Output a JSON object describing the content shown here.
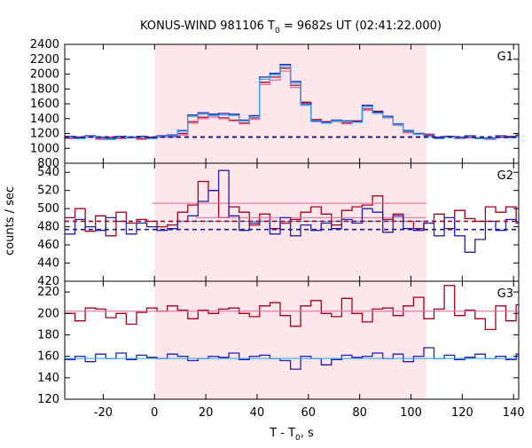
{
  "chart_data": {
    "type": "line",
    "title": "KONUS-WIND 981106 T",
    "title_subscript": "0",
    "title_suffix": " = 9682s UT (02:41:22.000)",
    "xlabel": "T - T",
    "xlabel_subscript": "0",
    "xlabel_suffix": ", s",
    "ylabel": "counts / sec",
    "xlim": [
      -35,
      142
    ],
    "xticks": [
      -20,
      0,
      20,
      40,
      60,
      80,
      100,
      120,
      140
    ],
    "xtick_labels": [
      "-20",
      "0",
      "20",
      "40",
      "60",
      "80",
      "100",
      "120",
      "140"
    ],
    "shaded_interval": [
      0,
      106
    ],
    "shade_color": "#fde7ea",
    "colors": {
      "dark_red": "#a8001c",
      "pink": "#e070a0",
      "dark_blue": "#2020b0",
      "light_blue": "#3aa8f0",
      "bg_dark_red": "#a8001c",
      "bg_dark_blue": "#1a1a9a"
    },
    "panels": [
      {
        "label": "G1",
        "ylim": [
          800,
          2400
        ],
        "yticks": [
          800,
          1000,
          1200,
          1400,
          1600,
          1800,
          2000,
          2200,
          2400
        ],
        "ytick_labels": [
          "800",
          "1000",
          "1200",
          "1400",
          "1600",
          "1800",
          "2000",
          "2200",
          "2400"
        ],
        "x_step": -35,
        "bin_width": 4,
        "series": [
          {
            "color_key": "dark_red",
            "style": "step",
            "values": [
              1140,
              1150,
              1160,
              1130,
              1150,
              1140,
              1150,
              1130,
              1150,
              1160,
              1160,
              1200,
              1360,
              1420,
              1440,
              1410,
              1380,
              1340,
              1410,
              1890,
              1960,
              2080,
              1850,
              1620,
              1390,
              1360,
              1370,
              1340,
              1370,
              1530,
              1500,
              1420,
              1320,
              1220,
              1200,
              1190,
              1150,
              1160,
              1140,
              1150,
              1140,
              1130,
              1150,
              1160,
              1180
            ]
          },
          {
            "color_key": "pink",
            "style": "step",
            "values": [
              1130,
              1140,
              1150,
              1120,
              1140,
              1130,
              1140,
              1120,
              1140,
              1150,
              1150,
              1180,
              1340,
              1400,
              1420,
              1400,
              1370,
              1330,
              1390,
              1860,
              1920,
              2040,
              1820,
              1600,
              1380,
              1350,
              1360,
              1330,
              1360,
              1510,
              1480,
              1410,
              1310,
              1210,
              1190,
              1180,
              1140,
              1150,
              1130,
              1140,
              1130,
              1120,
              1140,
              1150,
              1170
            ]
          },
          {
            "color_key": "dark_blue",
            "style": "step",
            "values": [
              1160,
              1140,
              1170,
              1150,
              1130,
              1160,
              1150,
              1160,
              1140,
              1170,
              1180,
              1240,
              1450,
              1480,
              1460,
              1470,
              1460,
              1380,
              1440,
              1960,
              2010,
              2130,
              1900,
              1600,
              1370,
              1350,
              1380,
              1370,
              1360,
              1580,
              1490,
              1430,
              1330,
              1240,
              1200,
              1170,
              1140,
              1160,
              1150,
              1170,
              1140,
              1140,
              1170,
              1150,
              1170
            ]
          },
          {
            "color_key": "light_blue",
            "style": "step",
            "values": [
              1150,
              1130,
              1160,
              1140,
              1120,
              1150,
              1140,
              1150,
              1130,
              1160,
              1170,
              1230,
              1430,
              1460,
              1440,
              1450,
              1440,
              1370,
              1420,
              1930,
              1990,
              2110,
              1880,
              1580,
              1360,
              1340,
              1370,
              1360,
              1350,
              1560,
              1470,
              1420,
              1320,
              1230,
              1190,
              1160,
              1130,
              1150,
              1140,
              1160,
              1130,
              1130,
              1160,
              1140,
              1160
            ]
          },
          {
            "color_key": "bg_dark_red",
            "style": "dashed",
            "value": 1155
          },
          {
            "color_key": "bg_dark_blue",
            "style": "dashed",
            "value": 1150
          }
        ]
      },
      {
        "label": "G2",
        "ylim": [
          420,
          550
        ],
        "yticks": [
          420,
          440,
          460,
          480,
          500,
          520,
          540
        ],
        "ytick_labels": [
          "420",
          "440",
          "460",
          "480",
          "500",
          "520",
          "540"
        ],
        "x_step": -35,
        "bin_width": 4,
        "series": [
          {
            "color_key": "dark_red",
            "style": "step",
            "values": [
              490,
              500,
              475,
              492,
              470,
              496,
              484,
              488,
              486,
              480,
              482,
              496,
              504,
              530,
              520,
              490,
              502,
              496,
              482,
              494,
              478,
              484,
              488,
              496,
              502,
              494,
              482,
              498,
              502,
              504,
              514,
              488,
              494,
              486,
              478,
              484,
              494,
              478,
              498,
              489,
              486,
              502,
              496,
              502,
              486
            ]
          },
          {
            "color_key": "pink",
            "style": "flat",
            "x0": -1,
            "x1": 106,
            "value": 506
          },
          {
            "color_key": "pink",
            "style": "flat",
            "x0": 16,
            "x1": 106,
            "value": 490
          },
          {
            "color_key": "dark_blue",
            "style": "step",
            "values": [
              472,
              488,
              480,
              476,
              490,
              486,
              472,
              484,
              480,
              476,
              478,
              486,
              492,
              508,
              520,
              542,
              492,
              476,
              484,
              486,
              472,
              490,
              470,
              482,
              476,
              484,
              478,
              488,
              484,
              500,
              496,
              474,
              492,
              478,
              476,
              484,
              470,
              490,
              470,
              452,
              466,
              486,
              476,
              488,
              484
            ]
          },
          {
            "color_key": "light_blue",
            "style": "flat",
            "x0": 10,
            "x1": 106,
            "value": 486
          },
          {
            "color_key": "bg_dark_red",
            "style": "dashed",
            "value": 486
          },
          {
            "color_key": "bg_dark_blue",
            "style": "dashed",
            "value": 477
          }
        ]
      },
      {
        "label": "G3",
        "ylim": [
          120,
          230
        ],
        "yticks": [
          120,
          140,
          160,
          180,
          200,
          220
        ],
        "ytick_labels": [
          "120",
          "140",
          "160",
          "180",
          "200",
          "220"
        ],
        "x_step": -35,
        "bin_width": 4,
        "series": [
          {
            "color_key": "dark_red",
            "style": "step",
            "values": [
              200,
              193,
              205,
              204,
              196,
              200,
              190,
              201,
              205,
              202,
              207,
              203,
              195,
              203,
              200,
              204,
              205,
              200,
              197,
              207,
              210,
              198,
              188,
              207,
              212,
              200,
              197,
              214,
              200,
              192,
              204,
              205,
              198,
              207,
              215,
              195,
              204,
              226,
              198,
              203,
              195,
              185,
              207,
              193,
              208
            ]
          },
          {
            "color_key": "pink",
            "style": "flat",
            "x0": -35,
            "x1": 142,
            "value": 202
          },
          {
            "color_key": "dark_blue",
            "style": "step",
            "values": [
              157,
              160,
              155,
              162,
              158,
              163,
              157,
              161,
              159,
              158,
              162,
              160,
              156,
              158,
              160,
              159,
              163,
              157,
              160,
              161,
              158,
              156,
              148,
              160,
              158,
              152,
              157,
              161,
              159,
              160,
              163,
              158,
              162,
              155,
              160,
              168,
              158,
              161,
              157,
              159,
              162,
              158,
              160,
              157,
              162
            ]
          },
          {
            "color_key": "light_blue",
            "style": "flat",
            "x0": -35,
            "x1": 142,
            "value": 158
          }
        ]
      }
    ]
  }
}
